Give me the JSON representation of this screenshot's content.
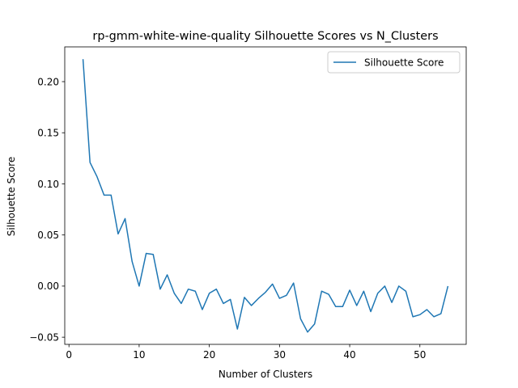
{
  "chart_data": {
    "type": "line",
    "title": "rp-gmm-white-wine-quality Silhouette Scores vs N_Clusters",
    "xlabel": "Number of Clusters",
    "ylabel": "Silhouette Score",
    "xlim": [
      -0.6,
      56.6
    ],
    "ylim": [
      -0.057,
      0.234
    ],
    "xticks": [
      0,
      10,
      20,
      30,
      40,
      50
    ],
    "xtick_labels": [
      "0",
      "10",
      "20",
      "30",
      "40",
      "50"
    ],
    "yticks": [
      -0.05,
      0.0,
      0.05,
      0.1,
      0.15,
      0.2
    ],
    "ytick_labels": [
      "−0.05",
      "0.00",
      "0.05",
      "0.10",
      "0.15",
      "0.20"
    ],
    "grid": false,
    "legend_position": "top-right",
    "line_color": "#1f77b4",
    "series": [
      {
        "name": "Silhouette Score",
        "x": [
          2,
          3,
          4,
          5,
          6,
          7,
          8,
          9,
          10,
          11,
          12,
          13,
          14,
          15,
          16,
          17,
          18,
          19,
          20,
          21,
          22,
          23,
          24,
          25,
          26,
          27,
          28,
          29,
          30,
          31,
          32,
          33,
          34,
          35,
          36,
          37,
          38,
          39,
          40,
          41,
          42,
          43,
          44,
          45,
          46,
          47,
          48,
          49,
          50,
          51,
          52,
          53,
          54
        ],
        "values": [
          0.222,
          0.121,
          0.107,
          0.089,
          0.089,
          0.051,
          0.066,
          0.024,
          0.0,
          0.032,
          0.031,
          -0.003,
          0.011,
          -0.007,
          -0.017,
          -0.003,
          -0.005,
          -0.023,
          -0.007,
          -0.003,
          -0.017,
          -0.013,
          -0.042,
          -0.011,
          -0.019,
          -0.012,
          -0.006,
          0.002,
          -0.012,
          -0.009,
          0.003,
          -0.032,
          -0.045,
          -0.037,
          -0.005,
          -0.008,
          -0.02,
          -0.02,
          -0.004,
          -0.019,
          -0.005,
          -0.025,
          -0.007,
          0.0,
          -0.016,
          0.0,
          -0.005,
          -0.03,
          -0.028,
          -0.023,
          -0.03,
          -0.027,
          0.0
        ]
      }
    ]
  }
}
